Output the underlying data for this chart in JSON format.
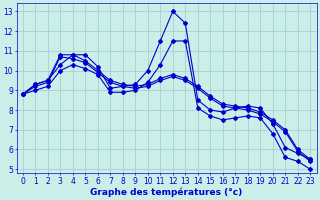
{
  "title": "Graphe des températures (°c)",
  "bg_color": "#cceee8",
  "grid_color": "#99cccc",
  "line_color": "#0000cc",
  "xlim": [
    -0.5,
    23.5
  ],
  "ylim": [
    4.8,
    13.4
  ],
  "xticks": [
    0,
    1,
    2,
    3,
    4,
    5,
    6,
    7,
    8,
    9,
    10,
    11,
    12,
    13,
    14,
    15,
    16,
    17,
    18,
    19,
    20,
    21,
    22,
    23
  ],
  "yticks": [
    5,
    6,
    7,
    8,
    9,
    10,
    11,
    12,
    13
  ],
  "curves": [
    {
      "x": [
        0,
        1,
        2,
        3,
        4,
        5,
        6,
        7,
        8,
        9,
        10,
        11,
        12,
        13,
        14,
        15,
        16,
        17,
        18,
        19,
        20,
        21,
        22,
        23
      ],
      "y": [
        8.8,
        9.3,
        9.5,
        10.3,
        10.8,
        10.8,
        10.2,
        9.1,
        9.2,
        9.3,
        10.0,
        11.5,
        13.0,
        12.4,
        8.5,
        8.0,
        7.9,
        8.1,
        8.2,
        8.1,
        7.3,
        6.1,
        5.8,
        5.5
      ]
    },
    {
      "x": [
        0,
        1,
        2,
        3,
        4,
        5,
        6,
        7,
        8,
        9,
        10,
        11,
        12,
        13,
        14,
        15,
        16,
        17,
        18,
        19,
        20,
        21,
        22,
        23
      ],
      "y": [
        8.8,
        9.3,
        9.5,
        10.8,
        10.8,
        10.5,
        10.0,
        9.5,
        9.3,
        9.2,
        9.3,
        9.6,
        9.8,
        9.6,
        9.2,
        8.7,
        8.3,
        8.2,
        8.1,
        7.9,
        7.5,
        7.0,
        6.0,
        5.5
      ]
    },
    {
      "x": [
        0,
        1,
        2,
        3,
        4,
        5,
        6,
        7,
        8,
        9,
        10,
        11,
        12,
        13,
        14,
        15,
        16,
        17,
        18,
        19,
        20,
        21,
        22,
        23
      ],
      "y": [
        8.8,
        9.0,
        9.2,
        10.0,
        10.3,
        10.1,
        9.8,
        8.9,
        8.9,
        9.0,
        9.4,
        10.3,
        11.5,
        11.5,
        8.1,
        7.7,
        7.5,
        7.6,
        7.7,
        7.6,
        6.8,
        5.6,
        5.4,
        5.0
      ]
    },
    {
      "x": [
        0,
        1,
        2,
        3,
        4,
        5,
        6,
        7,
        8,
        9,
        10,
        11,
        12,
        13,
        14,
        15,
        16,
        17,
        18,
        19,
        20,
        21,
        22,
        23
      ],
      "y": [
        8.8,
        9.2,
        9.4,
        10.7,
        10.6,
        10.4,
        9.9,
        9.4,
        9.2,
        9.1,
        9.2,
        9.5,
        9.7,
        9.5,
        9.1,
        8.6,
        8.2,
        8.1,
        8.0,
        7.8,
        7.4,
        6.9,
        5.9,
        5.4
      ]
    }
  ],
  "marker": "D",
  "markersize": 2.0,
  "linewidth": 0.8,
  "xlabel_fontsize": 6.5,
  "tick_fontsize": 5.5,
  "figsize": [
    3.2,
    2.0
  ],
  "dpi": 100
}
